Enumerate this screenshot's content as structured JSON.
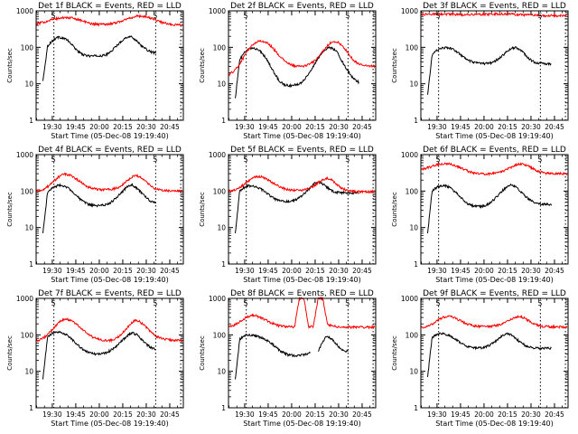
{
  "chart_data": [
    {
      "type": "line",
      "title": "Det 1f BLACK = Events, RED = LLD",
      "ylabel": "Counts/sec",
      "xlabel": "Start Time (05-Dec-08 19:19:40)",
      "yscale": "log",
      "ylim": [
        1,
        1000
      ],
      "y_ticks": [
        "1",
        "10",
        "100",
        "1000"
      ],
      "x_ticks": [
        "19:30",
        "19:45",
        "20:00",
        "20:15",
        "20:30",
        "20:45"
      ],
      "xlim": [
        "19:19:40",
        "20:53:40"
      ],
      "grid": false,
      "markers": [
        "19:31",
        "20:36",
        "20:52"
      ],
      "flags": [
        "S",
        "S"
      ],
      "series": [
        {
          "color": "#000000",
          "start": "19:24",
          "end": "20:36",
          "values": [
            12,
            110,
            150,
            190,
            185,
            165,
            125,
            90,
            68,
            60,
            58,
            58,
            58,
            60,
            68,
            90,
            120,
            160,
            195,
            190,
            150,
            110,
            88,
            75,
            70
          ]
        },
        {
          "color": "#ff0000",
          "start": "19:19:40",
          "end": "20:53",
          "values": [
            430,
            470,
            510,
            560,
            600,
            630,
            650,
            645,
            620,
            580,
            520,
            470,
            440,
            430,
            430,
            435,
            450,
            480,
            520,
            580,
            640,
            700,
            720,
            700,
            650,
            590,
            520,
            470,
            440,
            420,
            410,
            410
          ]
        }
      ]
    },
    {
      "type": "line",
      "title": "Det 2f BLACK = Events, RED = LLD",
      "ylabel": "Counts/sec",
      "xlabel": "Start Time (05-Dec-08 19:19:40)",
      "yscale": "log",
      "ylim": [
        1,
        1000
      ],
      "y_ticks": [
        "1",
        "10",
        "100",
        "1000"
      ],
      "x_ticks": [
        "19:30",
        "19:45",
        "20:00",
        "20:15",
        "20:30",
        "20:45"
      ],
      "xlim": [
        "19:19:40",
        "20:53:40"
      ],
      "grid": false,
      "markers": [
        "19:31",
        "20:36",
        "20:52"
      ],
      "flags": [
        "S",
        "S"
      ],
      "series": [
        {
          "color": "#000000",
          "start": "19:24",
          "end": "20:43",
          "values": [
            4,
            45,
            70,
            88,
            95,
            90,
            72,
            50,
            30,
            18,
            12,
            9.5,
            9,
            9,
            9.5,
            11,
            15,
            22,
            35,
            55,
            80,
            100,
            95,
            75,
            45,
            28,
            18,
            13,
            11
          ]
        },
        {
          "color": "#ff0000",
          "start": "19:20",
          "end": "20:53",
          "values": [
            18,
            22,
            30,
            48,
            80,
            110,
            140,
            150,
            140,
            115,
            85,
            60,
            45,
            36,
            32,
            30,
            30,
            32,
            36,
            45,
            62,
            90,
            125,
            145,
            135,
            105,
            75,
            50,
            38,
            34,
            32,
            31,
            31
          ]
        }
      ]
    },
    {
      "type": "line",
      "title": "Det 3f BLACK = Events, RED = LLD",
      "ylabel": "Counts/sec",
      "xlabel": "Start Time (05-Dec-08 19:19:40)",
      "yscale": "log",
      "ylim": [
        1,
        1000
      ],
      "y_ticks": [
        "1",
        "10",
        "100",
        "1000"
      ],
      "x_ticks": [
        "19:30",
        "19:45",
        "20:00",
        "20:15",
        "20:30",
        "20:45"
      ],
      "xlim": [
        "19:19:40",
        "20:53:40"
      ],
      "grid": false,
      "markers": [
        "19:31",
        "20:36",
        "20:52"
      ],
      "flags": [
        "S",
        "S"
      ],
      "series": [
        {
          "color": "#000000",
          "start": "19:24",
          "end": "20:43",
          "values": [
            5,
            60,
            82,
            95,
            98,
            95,
            85,
            70,
            55,
            45,
            40,
            37,
            36,
            36,
            37,
            40,
            48,
            60,
            78,
            95,
            98,
            85,
            65,
            48,
            40,
            37,
            36,
            35,
            35
          ]
        },
        {
          "color": "#ff0000",
          "start": "19:19:40",
          "end": "20:53",
          "values": [
            780,
            800,
            810,
            820,
            820,
            815,
            810,
            800,
            790,
            790,
            790,
            795,
            800,
            805,
            810,
            815,
            820,
            820,
            815,
            810,
            800,
            790,
            780,
            770,
            760,
            750,
            745,
            740,
            740,
            740,
            740,
            740
          ]
        }
      ]
    },
    {
      "type": "line",
      "title": "Det 4f BLACK = Events, RED = LLD",
      "ylabel": "Counts/sec",
      "xlabel": "Start Time (05-Dec-08 19:19:40)",
      "yscale": "log",
      "ylim": [
        1,
        1000
      ],
      "y_ticks": [
        "1",
        "10",
        "100",
        "1000"
      ],
      "x_ticks": [
        "19:30",
        "19:45",
        "20:00",
        "20:15",
        "20:30",
        "20:45"
      ],
      "xlim": [
        "19:19:40",
        "20:53:40"
      ],
      "grid": false,
      "markers": [
        "19:31",
        "20:36",
        "20:52"
      ],
      "flags": [
        "S",
        "S"
      ],
      "series": [
        {
          "color": "#000000",
          "start": "19:24",
          "end": "20:36",
          "values": [
            7,
            95,
            120,
            140,
            145,
            130,
            105,
            80,
            58,
            48,
            42,
            40,
            40,
            41,
            45,
            55,
            75,
            100,
            135,
            145,
            120,
            90,
            65,
            52,
            48
          ]
        },
        {
          "color": "#ff0000",
          "start": "19:19:40",
          "end": "20:53",
          "values": [
            100,
            105,
            118,
            150,
            200,
            260,
            290,
            280,
            240,
            195,
            155,
            130,
            118,
            112,
            110,
            110,
            112,
            120,
            140,
            180,
            230,
            270,
            250,
            200,
            150,
            120,
            108,
            104,
            102,
            100,
            100,
            100
          ]
        }
      ]
    },
    {
      "type": "line",
      "title": "Det 5f BLACK = Events, RED = LLD",
      "ylabel": "Counts/sec",
      "xlabel": "Start Time (05-Dec-08 19:19:40)",
      "yscale": "log",
      "ylim": [
        1,
        1000
      ],
      "y_ticks": [
        "1",
        "10",
        "100",
        "1000"
      ],
      "x_ticks": [
        "19:30",
        "19:45",
        "20:00",
        "20:15",
        "20:30",
        "20:45"
      ],
      "xlim": [
        "19:19:40",
        "20:53:40"
      ],
      "grid": false,
      "markers": [
        "19:31",
        "20:36",
        "20:52"
      ],
      "flags": [
        "S",
        "S"
      ],
      "series": [
        {
          "color": "#000000",
          "start": "19:24",
          "end": "20:43",
          "values": [
            7,
            100,
            125,
            140,
            140,
            130,
            110,
            90,
            72,
            60,
            54,
            52,
            52,
            54,
            60,
            72,
            95,
            125,
            165,
            175,
            150,
            120,
            100,
            92,
            90,
            90,
            90,
            90,
            90
          ]
        },
        {
          "color": "#ff0000",
          "start": "19:19:40",
          "end": "20:53",
          "values": [
            100,
            105,
            115,
            140,
            180,
            225,
            250,
            245,
            215,
            180,
            150,
            128,
            115,
            108,
            105,
            105,
            108,
            115,
            135,
            170,
            210,
            225,
            195,
            150,
            120,
            105,
            100,
            98,
            97,
            96,
            96,
            96
          ]
        }
      ]
    },
    {
      "type": "line",
      "title": "Det 6f BLACK = Events, RED = LLD",
      "ylabel": "Counts/sec",
      "xlabel": "Start Time (05-Dec-08 19:19:40)",
      "yscale": "log",
      "ylim": [
        1,
        1000
      ],
      "y_ticks": [
        "1",
        "10",
        "100",
        "1000"
      ],
      "x_ticks": [
        "19:30",
        "19:45",
        "20:00",
        "20:15",
        "20:30",
        "20:45"
      ],
      "xlim": [
        "19:19:40",
        "20:53:40"
      ],
      "grid": false,
      "markers": [
        "19:31",
        "20:36",
        "20:52"
      ],
      "flags": [
        "S",
        "S"
      ],
      "series": [
        {
          "color": "#000000",
          "start": "19:24",
          "end": "20:43",
          "values": [
            7,
            100,
            125,
            140,
            140,
            125,
            100,
            78,
            58,
            46,
            40,
            38,
            38,
            40,
            46,
            58,
            78,
            105,
            135,
            148,
            130,
            100,
            75,
            58,
            50,
            46,
            44,
            43,
            43
          ]
        },
        {
          "color": "#ff0000",
          "start": "19:19:40",
          "end": "20:53",
          "values": [
            400,
            420,
            460,
            510,
            550,
            570,
            560,
            520,
            460,
            400,
            350,
            315,
            300,
            295,
            295,
            300,
            315,
            340,
            380,
            440,
            510,
            560,
            540,
            470,
            400,
            350,
            320,
            305,
            300,
            300,
            300,
            300
          ]
        }
      ]
    },
    {
      "type": "line",
      "title": "Det 7f BLACK = Events, RED = LLD",
      "ylabel": "Counts/sec",
      "xlabel": "Start Time (05-Dec-08 19:19:40)",
      "yscale": "log",
      "ylim": [
        1,
        1000
      ],
      "y_ticks": [
        "1",
        "10",
        "100",
        "1000"
      ],
      "x_ticks": [
        "19:30",
        "19:45",
        "20:00",
        "20:15",
        "20:30",
        "20:45"
      ],
      "xlim": [
        "19:19:40",
        "20:53:40"
      ],
      "grid": false,
      "markers": [
        "19:31",
        "20:36",
        "20:52"
      ],
      "flags": [
        "S",
        "S"
      ],
      "series": [
        {
          "color": "#000000",
          "start": "19:24",
          "end": "20:36",
          "values": [
            6,
            90,
            110,
            120,
            115,
            100,
            80,
            60,
            45,
            36,
            32,
            30,
            30,
            31,
            35,
            42,
            55,
            72,
            95,
            115,
            100,
            75,
            55,
            45,
            40
          ]
        },
        {
          "color": "#ff0000",
          "start": "19:19:40",
          "end": "20:53",
          "values": [
            70,
            75,
            90,
            120,
            170,
            230,
            270,
            260,
            220,
            175,
            135,
            105,
            88,
            78,
            72,
            70,
            72,
            80,
            100,
            140,
            200,
            250,
            230,
            180,
            130,
            100,
            85,
            78,
            74,
            72,
            70,
            70
          ]
        }
      ]
    },
    {
      "type": "line",
      "title": "Det 8f BLACK = Events, RED = LLD",
      "ylabel": "Counts/sec",
      "xlabel": "Start Time (05-Dec-08 19:19:40)",
      "yscale": "log",
      "ylim": [
        1,
        1000
      ],
      "y_ticks": [
        "1",
        "10",
        "100",
        "1000"
      ],
      "x_ticks": [
        "19:30",
        "19:45",
        "20:00",
        "20:15",
        "20:30",
        "20:45"
      ],
      "xlim": [
        "19:19:40",
        "20:53:40"
      ],
      "grid": false,
      "markers": [
        "19:31",
        "20:36",
        "20:52"
      ],
      "flags": [
        "S",
        "S"
      ],
      "series": [
        {
          "color": "#000000",
          "start": "19:24",
          "end": "20:12",
          "values": [
            6,
            75,
            95,
            100,
            98,
            92,
            82,
            72,
            60,
            48,
            38,
            32,
            28,
            27,
            27,
            28,
            30,
            32
          ]
        },
        {
          "color": "#000000",
          "start": "20:17",
          "end": "20:36",
          "values": [
            35,
            65,
            95,
            80,
            60,
            45,
            38,
            35
          ]
        },
        {
          "color": "#ff0000",
          "start": "19:19:40",
          "end": "20:53",
          "values": [
            170,
            180,
            210,
            260,
            310,
            340,
            330,
            290,
            250,
            215,
            190,
            175,
            168,
            165,
            165,
            1000,
            1000,
            165,
            170,
            1000,
            1000,
            190,
            175,
            168,
            165,
            163,
            162,
            162,
            162,
            162,
            162,
            162
          ]
        }
      ]
    },
    {
      "type": "line",
      "title": "Det 9f BLACK = Events, RED = LLD",
      "ylabel": "Counts/sec",
      "xlabel": "Start Time (05-Dec-08 19:19:40)",
      "yscale": "log",
      "ylim": [
        1,
        1000
      ],
      "y_ticks": [
        "1",
        "10",
        "100",
        "1000"
      ],
      "x_ticks": [
        "19:30",
        "19:45",
        "20:00",
        "20:15",
        "20:30",
        "20:45"
      ],
      "xlim": [
        "19:19:40",
        "20:53:40"
      ],
      "grid": false,
      "markers": [
        "19:31",
        "20:36",
        "20:52"
      ],
      "flags": [
        "S",
        "S"
      ],
      "series": [
        {
          "color": "#000000",
          "start": "19:24",
          "end": "20:43",
          "values": [
            7,
            85,
            100,
            110,
            105,
            95,
            80,
            66,
            55,
            48,
            45,
            44,
            44,
            46,
            52,
            62,
            78,
            95,
            110,
            100,
            80,
            62,
            52,
            46,
            44,
            43,
            43,
            43,
            43
          ]
        },
        {
          "color": "#ff0000",
          "start": "19:19:40",
          "end": "20:53",
          "values": [
            160,
            165,
            185,
            220,
            270,
            310,
            320,
            300,
            260,
            220,
            195,
            180,
            172,
            170,
            170,
            172,
            180,
            195,
            220,
            260,
            300,
            320,
            290,
            240,
            200,
            180,
            172,
            168,
            166,
            165,
            165,
            165
          ]
        }
      ]
    }
  ]
}
